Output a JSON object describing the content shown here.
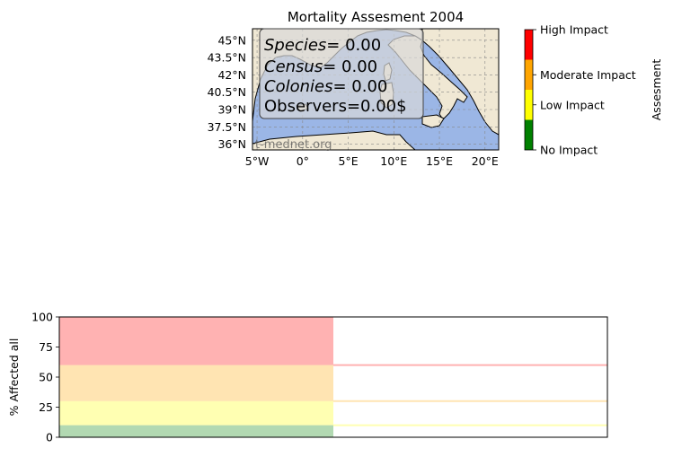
{
  "chart_data": [
    {
      "type": "map",
      "title": "Mortality Assesment 2004",
      "lon_range": [
        -5.5,
        21.5
      ],
      "lat_range": [
        35.5,
        46.0
      ],
      "lon_ticks": [
        "5°W",
        "0°",
        "5°E",
        "10°E",
        "15°E",
        "20°E"
      ],
      "lat_ticks": [
        "45°N",
        "43.5°N",
        "42°N",
        "40.5°N",
        "39°N",
        "37.5°N",
        "36°N"
      ],
      "grid": true,
      "colors": {
        "sea": "#9bb6e6",
        "land": "#f0e8d4"
      },
      "stats_box": {
        "species_label": "Species",
        "species_eq": "= 0.00",
        "census_label": "Census",
        "census_eq": "= 0.00",
        "colonies_label": "Colonies",
        "colonies_eq": "= 0.00",
        "observers_text": "Observers=0.00$"
      },
      "watermark": "t-mednet.org",
      "colorbar": {
        "label": "Assesment",
        "levels": [
          {
            "label": "No Impact",
            "color": "#008000",
            "from": 0,
            "to": 1
          },
          {
            "label": "Low Impact",
            "color": "#ffff00",
            "from": 1,
            "to": 2
          },
          {
            "label": "Moderate Impact",
            "color": "#ffa500",
            "from": 2,
            "to": 3
          },
          {
            "label": "High Impact",
            "color": "#ff0000",
            "from": 3,
            "to": 4
          }
        ],
        "tick_positions": [
          0,
          1.5,
          2.5,
          4
        ],
        "range": [
          0,
          4
        ]
      }
    },
    {
      "type": "bar",
      "ylabel": "% Affected all",
      "ylim": [
        0,
        100
      ],
      "yticks": [
        "0",
        "25",
        "50",
        "75",
        "100"
      ],
      "bands": [
        {
          "from": 0,
          "to": 10,
          "color": "#008000"
        },
        {
          "from": 10,
          "to": 30,
          "color": "#ffff00"
        },
        {
          "from": 30,
          "to": 60,
          "color": "#ffa500"
        },
        {
          "from": 60,
          "to": 100,
          "color": "#ff0000"
        }
      ],
      "band_opacity": 0.3
    }
  ]
}
